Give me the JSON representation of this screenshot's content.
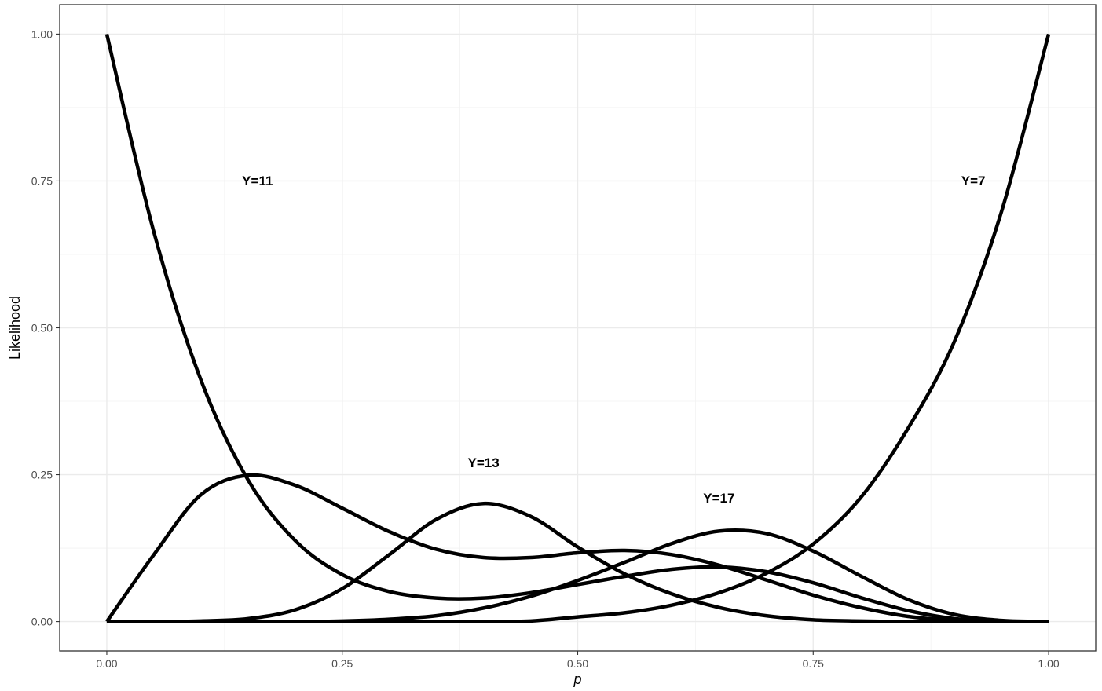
{
  "chart_data": {
    "type": "line",
    "title": "",
    "xlabel": "p",
    "ylabel": "Likelihood",
    "xlim": [
      -0.05,
      1.05
    ],
    "ylim": [
      -0.05,
      1.05
    ],
    "x_ticks": [
      {
        "value": 0,
        "label": "0.00"
      },
      {
        "value": 0.25,
        "label": "0.25"
      },
      {
        "value": 0.5,
        "label": "0.50"
      },
      {
        "value": 0.75,
        "label": "0.75"
      },
      {
        "value": 1,
        "label": "1.00"
      }
    ],
    "y_ticks": [
      {
        "value": 0,
        "label": "0.00"
      },
      {
        "value": 0.25,
        "label": "0.25"
      },
      {
        "value": 0.5,
        "label": "0.50"
      },
      {
        "value": 0.75,
        "label": "0.75"
      },
      {
        "value": 1,
        "label": "1.00"
      }
    ],
    "grid": true,
    "legend": "none",
    "line_color": "#000000",
    "series": [
      {
        "label": "Y=11",
        "x": [
          0,
          0.05,
          0.1,
          0.15,
          0.2,
          0.25,
          0.3,
          0.35,
          0.4,
          0.45,
          0.5,
          0.55,
          0.6,
          0.65,
          0.7,
          0.75,
          0.8,
          0.85,
          0.9,
          0.95,
          1
        ],
        "y": [
          1.0,
          0.663,
          0.411,
          0.241,
          0.138,
          0.08,
          0.051,
          0.04,
          0.04,
          0.049,
          0.063,
          0.077,
          0.089,
          0.093,
          0.085,
          0.066,
          0.041,
          0.019,
          0.005,
          0.001,
          0.0
        ]
      },
      {
        "label": "Y=13",
        "x": [
          0,
          0.05,
          0.1,
          0.15,
          0.2,
          0.25,
          0.3,
          0.35,
          0.4,
          0.45,
          0.5,
          0.55,
          0.6,
          0.65,
          0.7,
          0.75,
          0.8,
          0.85,
          0.9,
          0.95,
          1
        ],
        "y": [
          0.0,
          0.114,
          0.216,
          0.249,
          0.232,
          0.193,
          0.153,
          0.123,
          0.109,
          0.109,
          0.117,
          0.121,
          0.114,
          0.096,
          0.071,
          0.045,
          0.024,
          0.009,
          0.002,
          0.0,
          0.0
        ]
      },
      {
        "label": "Y=17",
        "x": [
          0,
          0.05,
          0.1,
          0.15,
          0.2,
          0.25,
          0.3,
          0.35,
          0.4,
          0.45,
          0.5,
          0.55,
          0.6,
          0.65,
          0.7,
          0.75,
          0.8,
          0.85,
          0.9,
          0.95,
          1
        ],
        "y": [
          0.0,
          0.0,
          0.001,
          0.005,
          0.02,
          0.056,
          0.114,
          0.174,
          0.201,
          0.179,
          0.127,
          0.081,
          0.047,
          0.024,
          0.01,
          0.003,
          0.001,
          0.0,
          0.0,
          0.0,
          0.0
        ]
      },
      {
        "label": "",
        "x": [
          0,
          0.05,
          0.1,
          0.15,
          0.2,
          0.25,
          0.3,
          0.35,
          0.4,
          0.45,
          0.5,
          0.55,
          0.6,
          0.65,
          0.7,
          0.75,
          0.8,
          0.85,
          0.9,
          0.95,
          1
        ],
        "y": [
          0.0,
          0.0,
          0.0,
          0.0,
          0.0,
          0.001,
          0.004,
          0.01,
          0.023,
          0.043,
          0.07,
          0.101,
          0.133,
          0.154,
          0.15,
          0.12,
          0.078,
          0.038,
          0.012,
          0.002,
          0.0
        ]
      },
      {
        "label": "Y=7",
        "x": [
          0,
          0.05,
          0.1,
          0.15,
          0.2,
          0.25,
          0.3,
          0.35,
          0.4,
          0.45,
          0.5,
          0.55,
          0.6,
          0.65,
          0.7,
          0.75,
          0.8,
          0.85,
          0.9,
          0.95,
          1
        ],
        "y": [
          0.0,
          0.0,
          0.0,
          0.0,
          0.0,
          0.0,
          0.0,
          0.0,
          0.0,
          0.001,
          0.008,
          0.015,
          0.028,
          0.049,
          0.082,
          0.132,
          0.21,
          0.327,
          0.477,
          0.698,
          1.0
        ]
      }
    ],
    "annotations": [
      {
        "text": "Y=11",
        "x": 0.16,
        "y": 0.75
      },
      {
        "text": "Y=13",
        "x": 0.4,
        "y": 0.27
      },
      {
        "text": "Y=17",
        "x": 0.65,
        "y": 0.21
      },
      {
        "text": "Y=7",
        "x": 0.92,
        "y": 0.75
      }
    ]
  }
}
